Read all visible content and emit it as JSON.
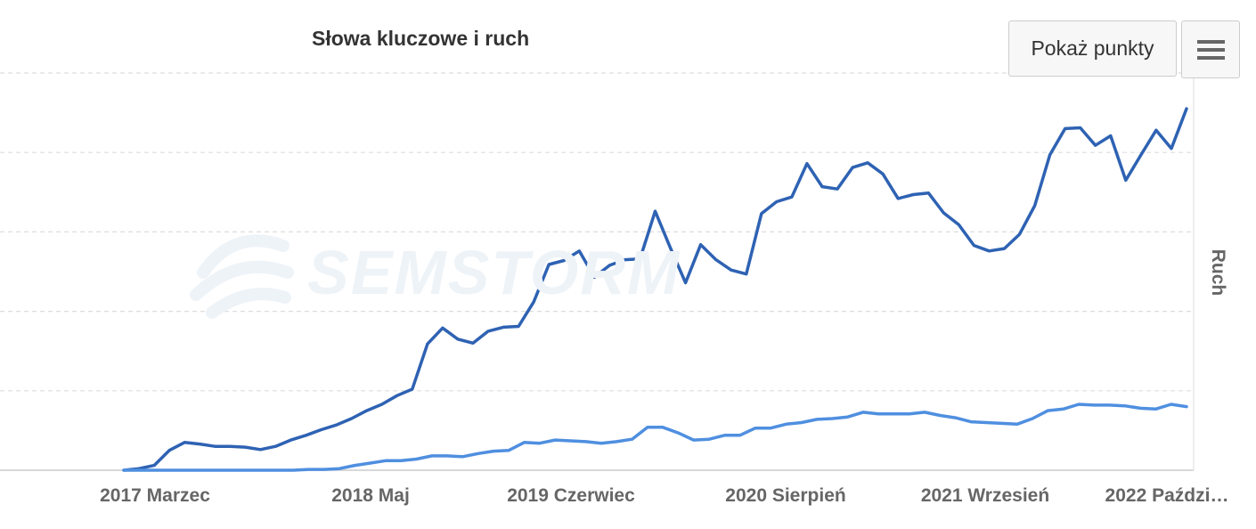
{
  "chart_data": {
    "type": "line",
    "title": "Słowa kluczowe i ruch",
    "ylabel": "Ruch",
    "x_tick_labels": [
      "2017 Marzec",
      "2018 Maj",
      "2019 Czerwiec",
      "2020 Sierpień",
      "2021 Wrzesień",
      "2022 Paździ…"
    ],
    "grid": true,
    "legend": "none",
    "ylim": [
      0,
      5
    ],
    "series": [
      {
        "color": "#2e62b3",
        "values": [
          0.0,
          0.02,
          0.06,
          0.25,
          0.35,
          0.33,
          0.3,
          0.3,
          0.29,
          0.26,
          0.3,
          0.38,
          0.44,
          0.51,
          0.57,
          0.65,
          0.75,
          0.83,
          0.94,
          1.02,
          1.59,
          1.79,
          1.65,
          1.6,
          1.75,
          1.8,
          1.81,
          2.12,
          2.59,
          2.64,
          2.76,
          2.43,
          2.58,
          2.65,
          2.66,
          3.26,
          2.8,
          2.36,
          2.84,
          2.65,
          2.52,
          2.47,
          3.23,
          3.38,
          3.44,
          3.86,
          3.57,
          3.54,
          3.81,
          3.87,
          3.73,
          3.42,
          3.47,
          3.49,
          3.24,
          3.09,
          2.83,
          2.76,
          2.79,
          2.97,
          3.33,
          3.97,
          4.3,
          4.31,
          4.09,
          4.21,
          3.65,
          3.97,
          4.28,
          4.05,
          4.55
        ]
      },
      {
        "color": "#4f8fe0",
        "values": [
          0.0,
          0.0,
          0.0,
          0.0,
          0.0,
          0.0,
          0.0,
          0.0,
          0.0,
          0.0,
          0.0,
          0.0,
          0.01,
          0.01,
          0.02,
          0.06,
          0.09,
          0.12,
          0.12,
          0.14,
          0.18,
          0.18,
          0.17,
          0.21,
          0.24,
          0.25,
          0.35,
          0.34,
          0.38,
          0.37,
          0.36,
          0.34,
          0.36,
          0.39,
          0.54,
          0.54,
          0.47,
          0.38,
          0.39,
          0.44,
          0.44,
          0.53,
          0.53,
          0.58,
          0.6,
          0.64,
          0.65,
          0.67,
          0.73,
          0.71,
          0.71,
          0.71,
          0.73,
          0.69,
          0.66,
          0.61,
          0.6,
          0.59,
          0.58,
          0.65,
          0.75,
          0.77,
          0.83,
          0.82,
          0.82,
          0.81,
          0.78,
          0.77,
          0.83,
          0.8
        ]
      }
    ]
  },
  "watermark": "SEMSTORM",
  "toolbar": {
    "show_points_label": "Pokaż punkty"
  }
}
